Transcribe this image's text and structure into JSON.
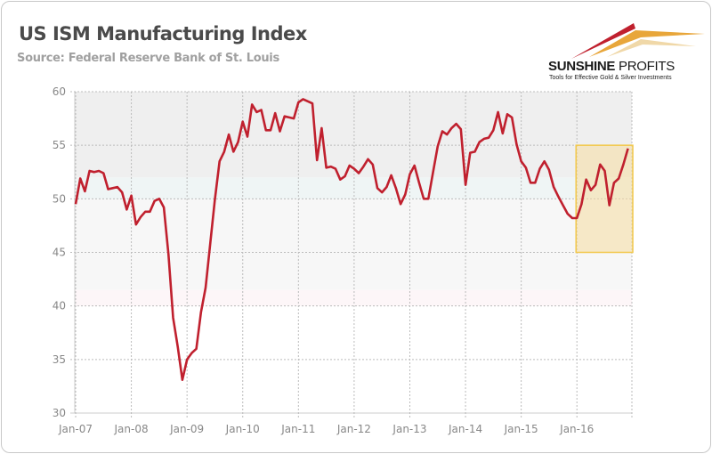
{
  "chart_data": {
    "type": "line",
    "title": "US ISM Manufacturing Index",
    "subtitle": "Source: Federal Reserve Bank of St. Louis",
    "ylim": [
      30,
      60
    ],
    "yticks": [
      30,
      35,
      40,
      45,
      50,
      55,
      60
    ],
    "xtick_labels": [
      "Jan-07",
      "Jan-08",
      "Jan-09",
      "Jan-10",
      "Jan-11",
      "Jan-12",
      "Jan-13",
      "Jan-14",
      "Jan-15",
      "Jan-16"
    ],
    "x_start": "Jan-07",
    "x_end": "Dec-16",
    "grid": true,
    "line_color": "#c0202e",
    "bands": [
      {
        "from": 52,
        "to": 60,
        "color": "#efefef"
      },
      {
        "from": 50,
        "to": 52,
        "color": "#eff5f5"
      },
      {
        "from": 41.5,
        "to": 50,
        "color": "#f7f7f7"
      },
      {
        "from": 40,
        "to": 41.5,
        "color": "#fdf6f8"
      }
    ],
    "highlight": {
      "from": "Jan-16",
      "to": "Dec-16",
      "ymin": 45,
      "ymax": 55,
      "fill": "#f5dca0",
      "stroke": "#f2c84b"
    },
    "values": [
      49.5,
      51.9,
      50.7,
      52.6,
      52.5,
      52.6,
      52.4,
      50.9,
      51.0,
      51.1,
      50.6,
      49.0,
      50.3,
      47.6,
      48.3,
      48.8,
      48.8,
      49.8,
      50.0,
      49.2,
      44.8,
      38.9,
      36.2,
      33.1,
      35.0,
      35.6,
      36.0,
      39.4,
      41.7,
      45.8,
      49.9,
      53.5,
      54.4,
      56.0,
      54.4,
      55.3,
      57.2,
      55.8,
      58.8,
      58.1,
      58.3,
      56.4,
      56.4,
      58.0,
      56.3,
      57.7,
      57.6,
      57.5,
      59.0,
      59.3,
      59.1,
      58.9,
      53.6,
      56.6,
      52.9,
      53.0,
      52.8,
      51.8,
      52.1,
      53.1,
      52.8,
      52.4,
      53.0,
      53.7,
      53.2,
      51.0,
      50.6,
      51.1,
      52.2,
      51.0,
      49.5,
      50.4,
      52.3,
      53.1,
      51.5,
      50.0,
      50.0,
      52.5,
      54.9,
      56.3,
      56.0,
      56.6,
      57.0,
      56.5,
      51.3,
      54.3,
      54.4,
      55.3,
      55.6,
      55.7,
      56.4,
      58.1,
      56.1,
      57.9,
      57.6,
      55.1,
      53.5,
      52.9,
      51.5,
      51.5,
      52.8,
      53.5,
      52.7,
      51.1,
      50.2,
      49.4,
      48.6,
      48.2,
      48.2,
      49.5,
      51.8,
      50.8,
      51.3,
      53.2,
      52.6,
      49.4,
      51.5,
      51.9,
      53.2,
      54.7
    ]
  },
  "logo": {
    "name_bold": "SUNSHINE",
    "name_light": " PROFITS",
    "tagline": "Tools for Effective Gold & Silver Investments"
  }
}
